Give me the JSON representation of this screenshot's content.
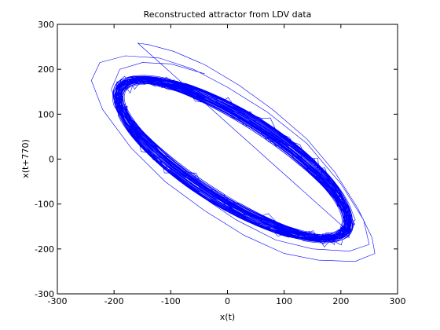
{
  "chart_data": {
    "type": "line",
    "title": "Reconstructed attractor from LDV data",
    "xlabel": "x(t)",
    "ylabel": "x(t+770)",
    "xlim": [
      -300,
      300
    ],
    "ylim": [
      -300,
      300
    ],
    "xticks": [
      -300,
      -200,
      -100,
      0,
      100,
      200,
      300
    ],
    "yticks": [
      -300,
      -200,
      -100,
      0,
      100,
      200,
      300
    ],
    "grid": false,
    "line_color": "#0000ff",
    "series": [
      {
        "orbit_center": [
          10,
          0
        ],
        "orbit_semi_major": [
          245,
          265
        ],
        "orbit_semi_minor": [
          70,
          100
        ],
        "orbit_tilt_deg": -40,
        "points": [
          [
            -158,
            258
          ],
          [
            -140,
            255
          ],
          [
            -95,
            240
          ],
          [
            -40,
            210
          ],
          [
            20,
            165
          ],
          [
            80,
            110
          ],
          [
            140,
            45
          ],
          [
            190,
            -30
          ],
          [
            230,
            -110
          ],
          [
            255,
            -175
          ],
          [
            260,
            -210
          ],
          [
            225,
            -228
          ],
          [
            160,
            -225
          ],
          [
            100,
            -210
          ],
          [
            30,
            -170
          ],
          [
            -40,
            -115
          ],
          [
            -110,
            -50
          ],
          [
            -170,
            25
          ],
          [
            -220,
            110
          ],
          [
            -240,
            175
          ],
          [
            -225,
            215
          ],
          [
            -180,
            230
          ],
          [
            -120,
            225
          ],
          [
            -60,
            200
          ],
          [
            0,
            160
          ],
          [
            70,
            105
          ],
          [
            140,
            35
          ],
          [
            200,
            -55
          ],
          [
            240,
            -135
          ],
          [
            250,
            -190
          ],
          [
            215,
            -205
          ],
          [
            150,
            -200
          ],
          [
            85,
            -180
          ],
          [
            15,
            -135
          ],
          [
            -55,
            -75
          ],
          [
            -125,
            0
          ],
          [
            -180,
            80
          ],
          [
            -205,
            155
          ],
          [
            -190,
            200
          ],
          [
            -150,
            215
          ],
          [
            -100,
            212
          ],
          [
            -40,
            190
          ]
        ]
      }
    ]
  }
}
